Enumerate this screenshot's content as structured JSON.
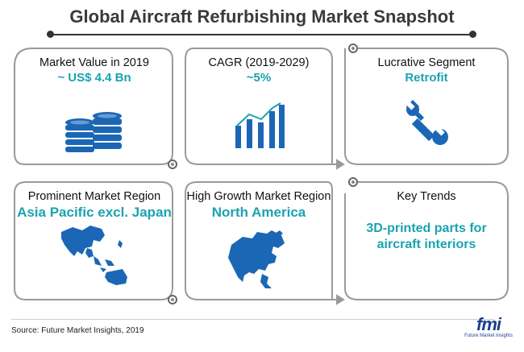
{
  "title": "Global Aircraft Refurbishing Market Snapshot",
  "cards": [
    {
      "heading": "Market Value in 2019",
      "value": "~ US$ 4.4 Bn",
      "icon": "coins-icon"
    },
    {
      "heading": "CAGR (2019-2029)",
      "value": "~5%",
      "icon": "bar-chart-icon"
    },
    {
      "heading": "Lucrative Segment",
      "value": "Retrofit",
      "icon": "wrench-icon"
    },
    {
      "heading": "Prominent Market Region",
      "value": "Asia Pacific excl. Japan",
      "icon": "asia-map-icon"
    },
    {
      "heading": "High Growth Market Region",
      "value": "North America",
      "icon": "north-america-map-icon"
    },
    {
      "heading": "Key Trends",
      "value": "3D-printed parts for aircraft interiors",
      "icon": ""
    }
  ],
  "source": "Source: Future Market Insights, 2019",
  "logo": {
    "text": "fmi",
    "subtext": "Future Market Insights"
  },
  "colors": {
    "accent": "#1aa3b0",
    "icon": "#1b67b5",
    "frame": "#9a9a9a"
  }
}
